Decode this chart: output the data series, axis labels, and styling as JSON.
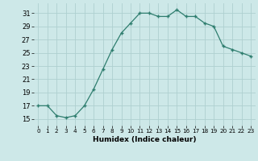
{
  "x": [
    0,
    1,
    2,
    3,
    4,
    5,
    6,
    7,
    8,
    9,
    10,
    11,
    12,
    13,
    14,
    15,
    16,
    17,
    18,
    19,
    20,
    21,
    22,
    23
  ],
  "y": [
    17,
    17,
    15.5,
    15.2,
    15.5,
    17,
    19.5,
    22.5,
    25.5,
    28,
    29.5,
    31,
    31,
    30.5,
    30.5,
    31.5,
    30.5,
    30.5,
    29.5,
    29,
    26,
    25.5,
    25,
    24.5
  ],
  "line_color": "#2e7d6e",
  "marker": "+",
  "bg_color": "#cde8e8",
  "grid_color": "#aed0d0",
  "xlabel": "Humidex (Indice chaleur)",
  "xlim": [
    -0.5,
    23.5
  ],
  "ylim": [
    14,
    32.5
  ],
  "yticks": [
    15,
    17,
    19,
    21,
    23,
    25,
    27,
    29,
    31
  ],
  "xticks": [
    0,
    1,
    2,
    3,
    4,
    5,
    6,
    7,
    8,
    9,
    10,
    11,
    12,
    13,
    14,
    15,
    16,
    17,
    18,
    19,
    20,
    21,
    22,
    23
  ],
  "xtick_labels": [
    "0",
    "1",
    "2",
    "3",
    "4",
    "5",
    "6",
    "7",
    "8",
    "9",
    "10",
    "11",
    "12",
    "13",
    "14",
    "15",
    "16",
    "17",
    "18",
    "19",
    "20",
    "21",
    "22",
    "23"
  ]
}
